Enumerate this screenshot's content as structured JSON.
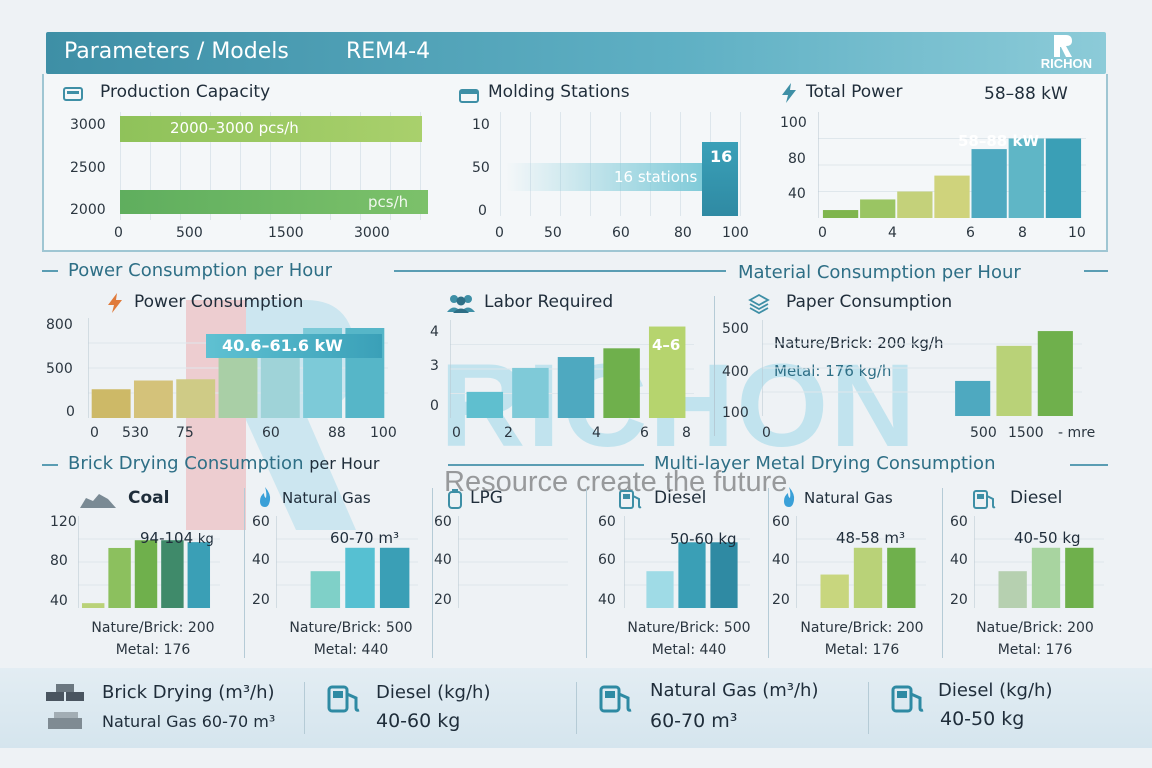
{
  "header": {
    "title": "Parameters / Models",
    "model": "REM4-4",
    "logo_text": "RICHON"
  },
  "sections": {
    "power_per_hour": "Power Consumption per Hour",
    "material_per_hour": "Material Consumption per Hour",
    "brick_drying": "Brick Drying Consumption",
    "brick_drying_suffix": "per Hour",
    "metal_drying": "Multi-layer Metal Drying Consumption"
  },
  "watermark": {
    "brand": "RICHON",
    "tagline": "Resource create the future"
  },
  "colors": {
    "accent": "#3e8fa6",
    "green": "#7fb54e",
    "teal": "#3fa3b8",
    "light_teal": "#9fdbe6"
  },
  "chart_data": [
    {
      "id": "production_capacity",
      "type": "bar",
      "orientation": "horizontal",
      "title": "Production Capacity",
      "icon": "machine-icon",
      "y_ticks": [
        "3000",
        "2500",
        "2000"
      ],
      "x_ticks": [
        "0",
        "500",
        "1500",
        "3000"
      ],
      "series": [
        {
          "label": "2000–3000 pcs/h",
          "value": [
            2000,
            3000
          ]
        },
        {
          "label": "pcs/h",
          "value": 3000
        }
      ]
    },
    {
      "id": "molding_stations",
      "type": "bar",
      "title": "Molding Stations",
      "icon": "molding-icon",
      "y_ticks": [
        "10",
        "50",
        "0"
      ],
      "x_ticks": [
        "0",
        "50",
        "60",
        "80",
        "100"
      ],
      "series": [
        {
          "label": "16 stations",
          "value": 16
        },
        {
          "label": "16",
          "value": 16
        }
      ]
    },
    {
      "id": "total_power",
      "type": "bar",
      "title": "Total Power",
      "subtitle": "58–88 kW",
      "icon": "lightning-icon",
      "y_ticks": [
        "100",
        "80",
        "40"
      ],
      "x_ticks": [
        "0",
        "4",
        "6",
        "8",
        "10"
      ],
      "bar_label": "58–88 kW",
      "ylim": [
        20,
        100
      ],
      "values": [
        26,
        34,
        40,
        52,
        72,
        80,
        80
      ]
    },
    {
      "id": "power_consumption",
      "type": "bar",
      "title": "Power Consumption",
      "icon": "lightning-icon",
      "y_ticks": [
        "800",
        "500",
        "0"
      ],
      "x_ticks": [
        "0",
        "530",
        "75",
        "60",
        "88",
        "100"
      ],
      "bar_label": "40.6–61.6 kW",
      "ylim": [
        0,
        800
      ],
      "values": [
        230,
        300,
        310,
        490,
        560,
        720,
        720
      ]
    },
    {
      "id": "labor_required",
      "type": "bar",
      "title": "Labor Required",
      "icon": "people-icon",
      "y_ticks": [
        "4",
        "3",
        "0"
      ],
      "x_ticks": [
        "0",
        "2",
        "4",
        "6",
        "8"
      ],
      "bar_label": "4–6",
      "ylim": [
        0,
        4.5
      ],
      "values": [
        1.2,
        2.3,
        2.8,
        3.2,
        4.2
      ]
    },
    {
      "id": "paper_consumption",
      "type": "bar",
      "title": "Paper Consumption",
      "icon": "paper-stack-icon",
      "y_ticks": [
        "500",
        "400",
        "100"
      ],
      "x_ticks": [
        "0",
        "500",
        "1500",
        "- mre"
      ],
      "notes": [
        "Nature/Brick: 200 kg/h",
        "Metal: 176 kg/h"
      ],
      "ylim": [
        0,
        520
      ],
      "values": [
        190,
        380,
        460
      ]
    },
    {
      "id": "brick_coal",
      "type": "bar",
      "title": "Coal",
      "icon": "coal-icon",
      "y_ticks": [
        "120",
        "80",
        "40"
      ],
      "bar_label": "94-104",
      "bar_unit": "kg",
      "footer": [
        "Nature/Brick: 200",
        "Metal: 176"
      ],
      "ylim": [
        30,
        125
      ],
      "values": [
        35,
        92,
        100,
        100,
        98
      ]
    },
    {
      "id": "brick_natural_gas",
      "type": "bar",
      "title": "Natural Gas",
      "icon": "flame-icon",
      "y_ticks": [
        "60",
        "40",
        "20"
      ],
      "bar_label": "60-70 m³",
      "footer": [
        "Nature/Brick: 500",
        "Metal: 440"
      ],
      "ylim": [
        10,
        65
      ],
      "values": [
        32,
        46,
        46
      ]
    },
    {
      "id": "brick_lpg",
      "type": "bar",
      "title": "LPG",
      "icon": "gas-tank-icon",
      "y_ticks": [
        "60",
        "40",
        "20"
      ],
      "ylim": [
        10,
        65
      ],
      "values": []
    },
    {
      "id": "metal_diesel",
      "type": "bar",
      "title": "Diesel",
      "icon": "fuel-pump-icon",
      "y_ticks": [
        "60",
        "60",
        "40"
      ],
      "bar_label": "50-60 kg",
      "footer": [
        "Nature/Brick: 500",
        "Metal: 440"
      ],
      "ylim": [
        30,
        65
      ],
      "values": [
        44,
        55,
        55
      ]
    },
    {
      "id": "metal_natural_gas",
      "type": "bar",
      "title": "Natural Gas",
      "icon": "flame-icon",
      "y_ticks": [
        "60",
        "40",
        "20"
      ],
      "bar_label": "48-58 m³",
      "footer": [
        "Nature/Brick: 200",
        "Metal: 176"
      ],
      "ylim": [
        10,
        65
      ],
      "values": [
        30,
        46,
        46
      ]
    },
    {
      "id": "metal_diesel_2",
      "type": "bar",
      "title": "Diesel",
      "icon": "fuel-pump-icon",
      "y_ticks": [
        "60",
        "40",
        "20"
      ],
      "bar_label": "40-50 kg",
      "footer": [
        "Natue/Brick: 200",
        "Metal: 176"
      ],
      "ylim": [
        10,
        65
      ],
      "values": [
        32,
        46,
        46
      ]
    }
  ],
  "bottom": [
    {
      "title": "Brick Drying (m³/h)",
      "line2": "Natural Gas 60-70 m³",
      "icon": "bricks-icon"
    },
    {
      "title": "Diesel (kg/h)",
      "value": "40-60 kg",
      "icon": "fuel-pump-icon"
    },
    {
      "title": "Natural Gas (m³/h)",
      "value": "60-70 m³",
      "icon": "fuel-pump-icon"
    },
    {
      "title": "Diesel (kg/h)",
      "value": "40-50 kg",
      "icon": "fuel-pump-icon"
    }
  ]
}
